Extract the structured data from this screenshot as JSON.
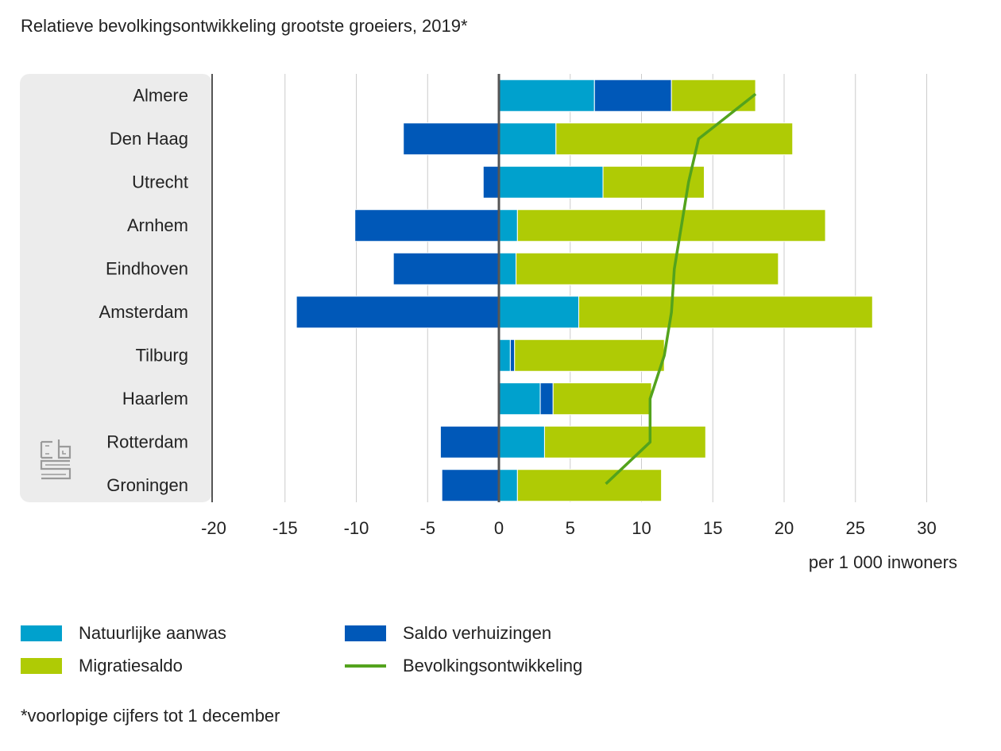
{
  "chart_data": {
    "type": "bar",
    "orientation": "horizontal-stacked",
    "title": "Relatieve bevolkingsontwikkeling grootste groeiers, 2019*",
    "xlabel": "per 1 000 inwoners",
    "xlim": [
      -20,
      30
    ],
    "xticks": [
      "-20",
      "-15",
      "-10",
      "-5",
      "0",
      "5",
      "10",
      "15",
      "20",
      "25",
      "30"
    ],
    "categories": [
      "Almere",
      "Den Haag",
      "Utrecht",
      "Arnhem",
      "Eindhoven",
      "Amsterdam",
      "Tilburg",
      "Haarlem",
      "Rotterdam",
      "Groningen"
    ],
    "series": [
      {
        "name": "Natuurlijke aanwas",
        "color": "#00a1cd",
        "values": [
          6.7,
          4.0,
          7.3,
          1.3,
          1.2,
          5.6,
          0.8,
          2.9,
          3.2,
          1.3
        ]
      },
      {
        "name": "Saldo verhuizingen",
        "color": "#0058b8",
        "values": [
          5.4,
          -6.7,
          -1.1,
          -10.1,
          -7.4,
          -14.2,
          0.3,
          0.9,
          -4.1,
          -4.0
        ]
      },
      {
        "name": "Migratiesaldo",
        "color": "#afcb05",
        "values": [
          5.9,
          16.6,
          7.1,
          21.6,
          18.4,
          20.6,
          10.5,
          6.9,
          11.3,
          10.1
        ]
      },
      {
        "name": "Bevolkingsontwikkeling",
        "color": "#53a31d",
        "type": "line",
        "values": [
          18.0,
          14.0,
          13.3,
          12.8,
          12.3,
          12.1,
          11.6,
          10.6,
          10.6,
          7.5
        ]
      }
    ]
  },
  "footnote": "*voorlopige cijfers tot 1 december",
  "colors": {
    "gridline": "#cccccc",
    "zeroline": "#555555",
    "label_panel": "#ececec",
    "logo": "#9a9a9a"
  },
  "logo": {
    "text": "cbs"
  }
}
